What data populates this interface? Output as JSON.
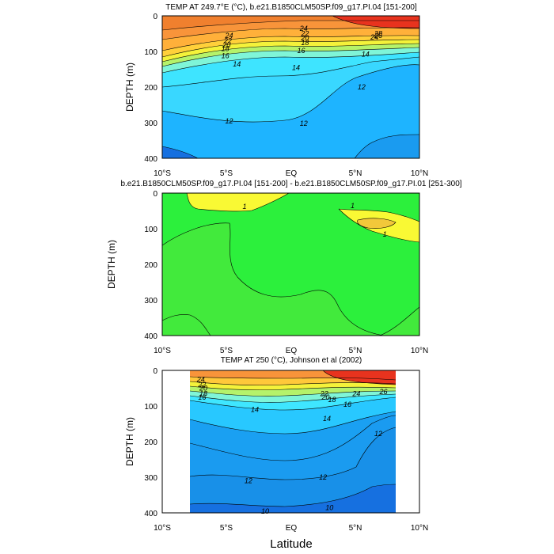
{
  "chart_data": [
    {
      "type": "contour",
      "title": "TEMP AT 249.7°E (°C), b.e21.B1850CLM50SP.f09_g17.PI.04 [151-200]",
      "xlabel": "",
      "ylabel": "DEPTH (m)",
      "xlim": [
        -10,
        10
      ],
      "ylim": [
        400,
        0
      ],
      "x_ticks": [
        "10°S",
        "5°S",
        "EQ",
        "5°N",
        "10°N"
      ],
      "y_ticks": [
        "0",
        "100",
        "200",
        "300",
        "400"
      ],
      "contour_labels": [
        {
          "text": "24",
          "x": -4.8,
          "y": 55
        },
        {
          "text": "24",
          "x": 1.0,
          "y": 35
        },
        {
          "text": "24",
          "x": 6.5,
          "y": 60
        },
        {
          "text": "22",
          "x": -4.9,
          "y": 70
        },
        {
          "text": "22",
          "x": 1.1,
          "y": 50
        },
        {
          "text": "20",
          "x": -5.0,
          "y": 82
        },
        {
          "text": "20",
          "x": 1.1,
          "y": 62
        },
        {
          "text": "18",
          "x": -5.1,
          "y": 92
        },
        {
          "text": "18",
          "x": 1.1,
          "y": 75
        },
        {
          "text": "28",
          "x": 6.8,
          "y": 50
        },
        {
          "text": "26",
          "x": 6.8,
          "y": 56
        },
        {
          "text": "16",
          "x": -5.1,
          "y": 112
        },
        {
          "text": "16",
          "x": 0.8,
          "y": 98
        },
        {
          "text": "14",
          "x": 5.8,
          "y": 108
        },
        {
          "text": "14",
          "x": -4.2,
          "y": 135
        },
        {
          "text": "14",
          "x": 0.4,
          "y": 145
        },
        {
          "text": "12",
          "x": 5.5,
          "y": 200
        },
        {
          "text": "12",
          "x": -4.8,
          "y": 295
        },
        {
          "text": "12",
          "x": 1.0,
          "y": 302
        }
      ]
    },
    {
      "type": "contour",
      "title": "b.e21.B1850CLM50SP.f09_g17.PI.04 [151-200] - b.e21.B1850CLM50SP.f09_g17.PI.01 [251-300]",
      "xlabel": "",
      "ylabel": "DEPTH (m)",
      "xlim": [
        -10,
        10
      ],
      "ylim": [
        400,
        0
      ],
      "x_ticks": [
        "10°S",
        "5°S",
        "EQ",
        "5°N",
        "10°N"
      ],
      "y_ticks": [
        "0",
        "100",
        "200",
        "300",
        "400"
      ],
      "contour_labels": [
        {
          "text": "1",
          "x": -3.6,
          "y": 38
        },
        {
          "text": "1",
          "x": 4.8,
          "y": 35
        },
        {
          "text": "1",
          "x": 7.3,
          "y": 115
        }
      ]
    },
    {
      "type": "contour",
      "title": "TEMP AT 250 (°C), Johnson et al (2002)",
      "xlabel": "Latitude",
      "ylabel": "DEPTH (m)",
      "xlim": [
        -10,
        10
      ],
      "ylim": [
        400,
        0
      ],
      "data_range_x": [
        -8,
        8
      ],
      "x_ticks": [
        "10°S",
        "5°S",
        "EQ",
        "5°N",
        "10°N"
      ],
      "y_ticks": [
        "0",
        "100",
        "200",
        "300",
        "400"
      ],
      "contour_labels": [
        {
          "text": "24",
          "x": -7.0,
          "y": 25
        },
        {
          "text": "22",
          "x": -6.9,
          "y": 40
        },
        {
          "text": "20",
          "x": -6.8,
          "y": 50
        },
        {
          "text": "18",
          "x": -6.8,
          "y": 65
        },
        {
          "text": "16",
          "x": -6.9,
          "y": 75
        },
        {
          "text": "22",
          "x": 2.6,
          "y": 65
        },
        {
          "text": "20",
          "x": 2.7,
          "y": 75
        },
        {
          "text": "18",
          "x": 3.2,
          "y": 82
        },
        {
          "text": "16",
          "x": 4.4,
          "y": 95
        },
        {
          "text": "24",
          "x": 5.1,
          "y": 65
        },
        {
          "text": "26",
          "x": 7.2,
          "y": 60
        },
        {
          "text": "14",
          "x": -2.8,
          "y": 110
        },
        {
          "text": "14",
          "x": 2.8,
          "y": 135
        },
        {
          "text": "12",
          "x": 6.8,
          "y": 178
        },
        {
          "text": "12",
          "x": -3.3,
          "y": 310
        },
        {
          "text": "12",
          "x": 2.5,
          "y": 300
        },
        {
          "text": "10",
          "x": -2.0,
          "y": 395
        },
        {
          "text": "10",
          "x": 3.0,
          "y": 385
        }
      ]
    }
  ]
}
